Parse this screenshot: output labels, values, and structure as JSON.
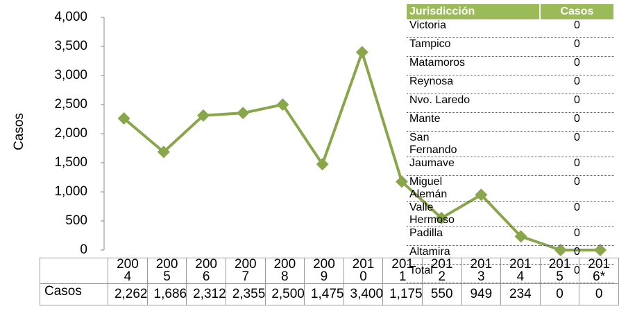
{
  "chart_data": {
    "type": "line",
    "y_label": "Casos",
    "categories": [
      "2004",
      "2005",
      "2006",
      "2007",
      "2008",
      "2009",
      "2010",
      "2011",
      "2012",
      "2013",
      "2014",
      "2015",
      "2016*"
    ],
    "series": [
      {
        "name": "Casos",
        "color": "#8aa64a",
        "values": [
          2262,
          1686,
          2312,
          2355,
          2500,
          1475,
          3400,
          1175,
          550,
          949,
          234,
          0,
          0
        ],
        "value_labels": [
          "2,262",
          "1,686",
          "2,312",
          "2,355",
          "2,500",
          "1,475",
          "3,400",
          "1,175",
          "550",
          "949",
          "234",
          "0",
          "0"
        ]
      }
    ],
    "ylim": [
      0,
      4000
    ],
    "yticks": [
      0,
      {
        "value": 500,
        "label": "500"
      },
      {
        "value": 1000,
        "label": "1,000"
      },
      {
        "value": 1500,
        "label": "1,500"
      },
      {
        "value": 2000,
        "label": "2,000"
      },
      {
        "value": 2500,
        "label": "2,500"
      },
      {
        "value": 3000,
        "label": "3,000"
      },
      {
        "value": 3500,
        "label": "3,500"
      },
      {
        "value": 4000,
        "label": "4,000"
      }
    ],
    "grid": false
  },
  "jurisdiction_table": {
    "headers": [
      "Jurisdicción",
      "Casos"
    ],
    "rows": [
      [
        "Victoria",
        "0"
      ],
      [
        "Tampico",
        "0"
      ],
      [
        "Matamoros",
        "0"
      ],
      [
        "Reynosa",
        "0"
      ],
      [
        "Nvo. Laredo",
        "0"
      ],
      [
        "Mante",
        "0"
      ],
      [
        "San Fernando",
        "0"
      ],
      [
        "Jaumave",
        "0"
      ],
      [
        "Miguel Alemán",
        "0"
      ],
      [
        "Valle Hermoso",
        "0"
      ],
      [
        "Padilla",
        "0"
      ],
      [
        "Altamira",
        "0"
      ],
      [
        "Total",
        "0"
      ]
    ]
  }
}
